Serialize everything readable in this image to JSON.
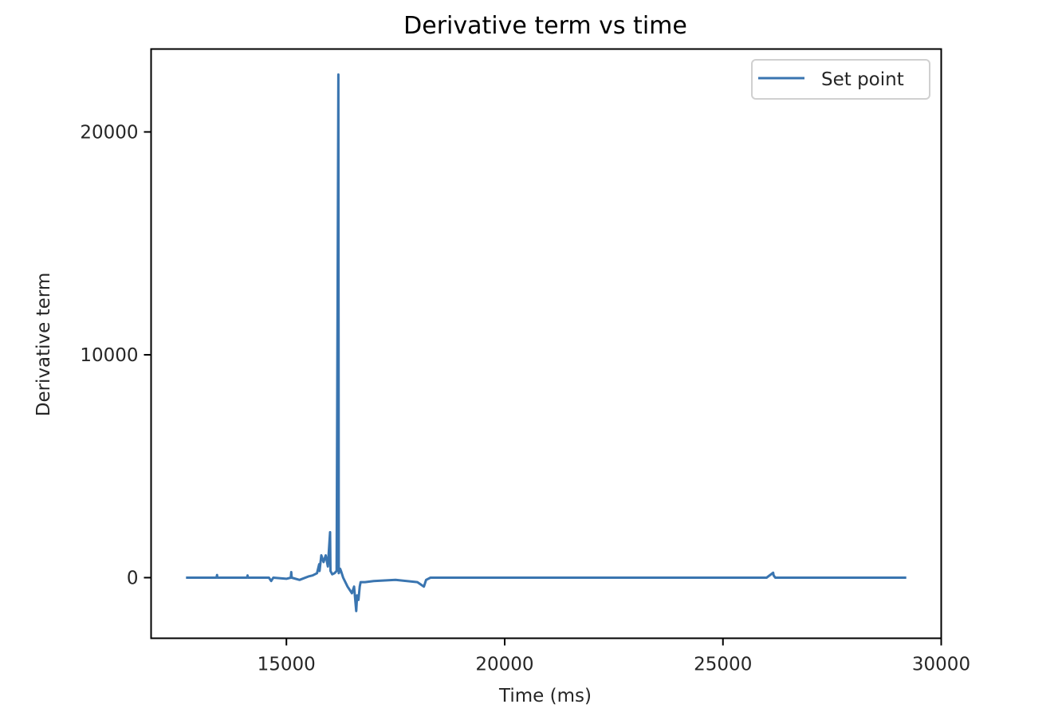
{
  "chart_data": {
    "type": "line",
    "title": "Derivative term vs time",
    "xlabel": "Time (ms)",
    "ylabel": "Derivative term",
    "xlim": [
      11900,
      30000
    ],
    "ylim": [
      -2720,
      23720
    ],
    "xticks": [
      15000,
      20000,
      25000,
      30000
    ],
    "xtick_labels": [
      "15000",
      "20000",
      "25000",
      "30000"
    ],
    "yticks": [
      0,
      10000,
      20000
    ],
    "ytick_labels": [
      "0",
      "10000",
      "20000"
    ],
    "grid": false,
    "legend": {
      "position": "upper right",
      "entries": [
        "Set point"
      ]
    },
    "series": [
      {
        "name": "Set point",
        "color": "#3a75b0",
        "x": [
          12700,
          13400,
          13410,
          13420,
          14100,
          14110,
          14120,
          14600,
          14650,
          14700,
          15000,
          15100,
          15110,
          15120,
          15300,
          15500,
          15600,
          15700,
          15750,
          15760,
          15800,
          15850,
          15900,
          15950,
          16000,
          16010,
          16050,
          16100,
          16150,
          16190,
          16200,
          16230,
          16250,
          16300,
          16400,
          16500,
          16550,
          16600,
          16620,
          16650,
          16680,
          16700,
          16800,
          17000,
          17500,
          18000,
          18150,
          18200,
          18300,
          19000,
          20000,
          21000,
          22000,
          23000,
          24000,
          25000,
          26000,
          26150,
          26160,
          26200,
          27000,
          28000,
          29200
        ],
        "y": [
          0,
          0,
          120,
          0,
          0,
          100,
          0,
          0,
          -150,
          0,
          -50,
          0,
          250,
          0,
          -100,
          50,
          100,
          200,
          600,
          300,
          1000,
          700,
          1000,
          500,
          2040,
          300,
          150,
          200,
          300,
          22575,
          200,
          400,
          300,
          0,
          -400,
          -700,
          -400,
          -1500,
          -800,
          -1000,
          -400,
          -200,
          -200,
          -150,
          -100,
          -200,
          -400,
          -100,
          0,
          0,
          0,
          0,
          0,
          0,
          0,
          0,
          0,
          220,
          100,
          0,
          0,
          0,
          0
        ]
      }
    ]
  }
}
